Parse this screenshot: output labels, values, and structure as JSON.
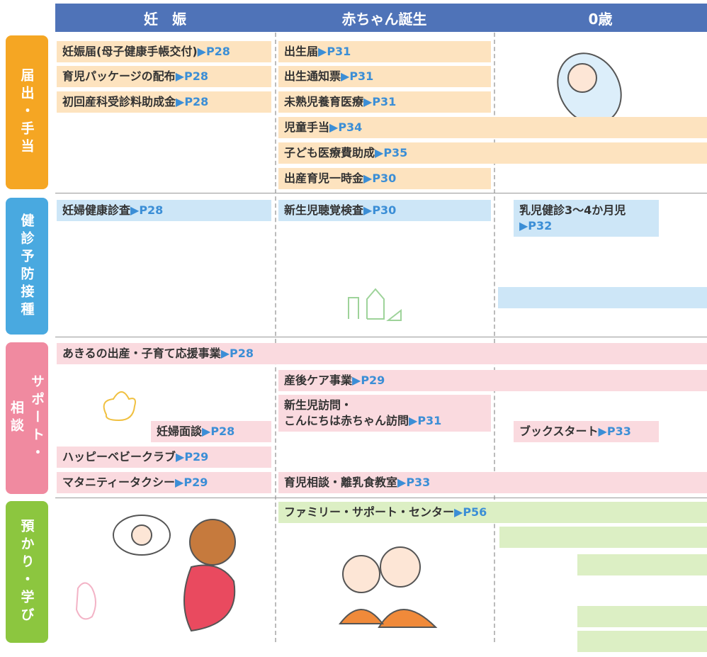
{
  "header": {
    "columns": [
      "妊　娠",
      "赤ちゃん誕生",
      "0歳"
    ]
  },
  "sections": [
    {
      "tab": [
        "届出・手当"
      ],
      "items": [
        {
          "label": [
            "妊娠届(母子健康手帳交付)"
          ],
          "page": "▶P28"
        },
        {
          "label": [
            "育児パッケージの配布"
          ],
          "page": "▶P28"
        },
        {
          "label": [
            "初回産科受診料助成金"
          ],
          "page": "▶P28"
        },
        {
          "label": [
            "出生届"
          ],
          "page": "▶P31"
        },
        {
          "label": [
            "出生通知票"
          ],
          "page": "▶P31"
        },
        {
          "label": [
            "未熟児養育医療"
          ],
          "page": "▶P31"
        },
        {
          "label": [
            "児童手当"
          ],
          "page": "▶P34"
        },
        {
          "label": [
            "子ども医療費助成"
          ],
          "page": "▶P35"
        },
        {
          "label": [
            "出産育児一時金"
          ],
          "page": "▶P30"
        }
      ]
    },
    {
      "tab": [
        "健診予防接種"
      ],
      "items": [
        {
          "label": [
            "妊婦健康診査"
          ],
          "page": "▶P28"
        },
        {
          "label": [
            "新生児聴覚検査"
          ],
          "page": "▶P30"
        },
        {
          "label": [
            "乳児健診3〜4か月児"
          ],
          "page": "▶P32"
        }
      ]
    },
    {
      "tab": [
        "サポート・",
        "相談"
      ],
      "items": [
        {
          "label": [
            "あきるの出産・子育て応援事業"
          ],
          "page": "▶P28"
        },
        {
          "label": [
            "産後ケア事業"
          ],
          "page": "▶P29"
        },
        {
          "label": [
            "新生児訪問・",
            "こんにちは赤ちゃん訪問"
          ],
          "page": "▶P31"
        },
        {
          "label": [
            "妊婦面談"
          ],
          "page": "▶P28"
        },
        {
          "label": [
            "ブックスタート"
          ],
          "page": "▶P33"
        },
        {
          "label": [
            "ハッピーベビークラブ"
          ],
          "page": "▶P29"
        },
        {
          "label": [
            "マタニティータクシー"
          ],
          "page": "▶P29"
        },
        {
          "label": [
            "育児相談・離乳食教室"
          ],
          "page": "▶P33"
        }
      ]
    },
    {
      "tab": [
        "預かり・学び"
      ],
      "items": [
        {
          "label": [
            "ファミリー・サポート・センター"
          ],
          "page": "▶P56"
        }
      ]
    }
  ]
}
